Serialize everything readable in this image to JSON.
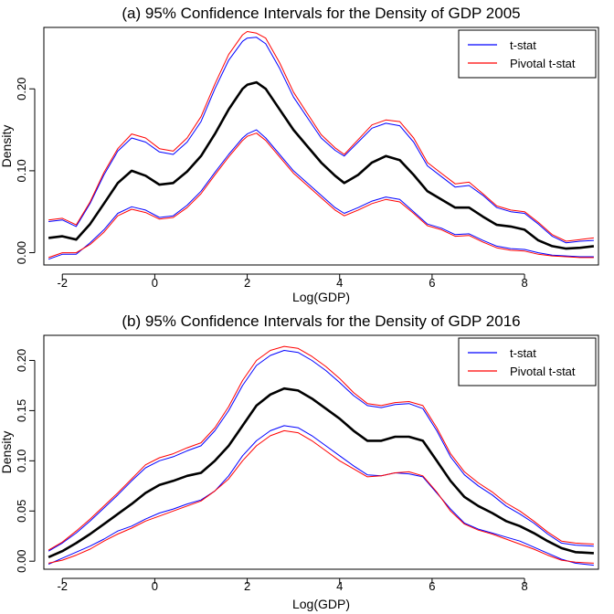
{
  "chart_data": [
    {
      "type": "line",
      "title": "(a) 95% Confidence Intervals for the Density of GDP 2005",
      "xlabel": "Log(GDP)",
      "ylabel": "Density",
      "xlim": [
        -2.4,
        9.6
      ],
      "ylim": [
        -0.015,
        0.275
      ],
      "xticks": [
        -2,
        0,
        2,
        4,
        6,
        8
      ],
      "xtick_labels": [
        "-2",
        "0",
        "2",
        "4",
        "6",
        "8"
      ],
      "yticks": [
        0.0,
        0.1,
        0.2
      ],
      "ytick_labels": [
        "0.00",
        "0.10",
        "0.20"
      ],
      "legend_position": "top-right",
      "legend": [
        {
          "label": "t-stat",
          "color": "#0000ff"
        },
        {
          "label": "Pivotal t-stat",
          "color": "#ff0000"
        }
      ],
      "x": [
        -2.3,
        -2.0,
        -1.7,
        -1.4,
        -1.1,
        -0.8,
        -0.5,
        -0.2,
        0.1,
        0.4,
        0.7,
        1.0,
        1.3,
        1.6,
        1.9,
        2.0,
        2.2,
        2.4,
        2.7,
        3.0,
        3.3,
        3.6,
        3.9,
        4.1,
        4.4,
        4.7,
        5.0,
        5.3,
        5.6,
        5.9,
        6.2,
        6.5,
        6.8,
        7.1,
        7.4,
        7.7,
        8.0,
        8.3,
        8.6,
        8.9,
        9.2,
        9.5
      ],
      "series": [
        {
          "name": "",
          "role": "estimate",
          "color": "#000000",
          "values": [
            0.018,
            0.02,
            0.016,
            0.035,
            0.06,
            0.085,
            0.1,
            0.094,
            0.083,
            0.085,
            0.099,
            0.118,
            0.145,
            0.175,
            0.2,
            0.205,
            0.208,
            0.2,
            0.175,
            0.15,
            0.13,
            0.11,
            0.094,
            0.085,
            0.095,
            0.11,
            0.118,
            0.113,
            0.095,
            0.075,
            0.065,
            0.055,
            0.055,
            0.044,
            0.034,
            0.032,
            0.028,
            0.015,
            0.008,
            0.005,
            0.006,
            0.008
          ]
        },
        {
          "name": "t-stat",
          "role": "upper",
          "color": "#0000ff",
          "values": [
            0.038,
            0.04,
            0.032,
            0.06,
            0.095,
            0.124,
            0.14,
            0.135,
            0.123,
            0.12,
            0.135,
            0.16,
            0.2,
            0.235,
            0.258,
            0.262,
            0.263,
            0.255,
            0.225,
            0.19,
            0.165,
            0.14,
            0.125,
            0.118,
            0.135,
            0.152,
            0.158,
            0.155,
            0.135,
            0.106,
            0.093,
            0.08,
            0.082,
            0.07,
            0.055,
            0.05,
            0.048,
            0.035,
            0.02,
            0.012,
            0.014,
            0.015
          ]
        },
        {
          "name": "Pivotal t-stat",
          "role": "upper",
          "color": "#ff0000",
          "values": [
            0.04,
            0.042,
            0.034,
            0.062,
            0.098,
            0.127,
            0.145,
            0.14,
            0.127,
            0.124,
            0.14,
            0.166,
            0.206,
            0.242,
            0.266,
            0.27,
            0.268,
            0.262,
            0.232,
            0.196,
            0.17,
            0.144,
            0.128,
            0.12,
            0.138,
            0.156,
            0.162,
            0.16,
            0.14,
            0.11,
            0.097,
            0.084,
            0.086,
            0.072,
            0.057,
            0.052,
            0.05,
            0.037,
            0.022,
            0.014,
            0.016,
            0.018
          ]
        },
        {
          "name": "t-stat",
          "role": "lower",
          "color": "#0000ff",
          "values": [
            -0.008,
            -0.002,
            -0.002,
            0.012,
            0.028,
            0.048,
            0.056,
            0.052,
            0.043,
            0.045,
            0.058,
            0.075,
            0.098,
            0.12,
            0.14,
            0.145,
            0.15,
            0.14,
            0.12,
            0.1,
            0.085,
            0.07,
            0.055,
            0.048,
            0.055,
            0.063,
            0.068,
            0.065,
            0.05,
            0.035,
            0.03,
            0.022,
            0.023,
            0.015,
            0.008,
            0.005,
            0.004,
            0.0,
            -0.003,
            -0.004,
            -0.005,
            -0.005
          ]
        },
        {
          "name": "Pivotal t-stat",
          "role": "lower",
          "color": "#ff0000",
          "values": [
            -0.006,
            0.0,
            0.0,
            0.01,
            0.025,
            0.045,
            0.053,
            0.049,
            0.041,
            0.043,
            0.055,
            0.072,
            0.095,
            0.117,
            0.137,
            0.142,
            0.146,
            0.137,
            0.117,
            0.097,
            0.082,
            0.067,
            0.052,
            0.045,
            0.052,
            0.06,
            0.065,
            0.062,
            0.048,
            0.033,
            0.028,
            0.02,
            0.021,
            0.013,
            0.006,
            0.003,
            0.002,
            -0.002,
            -0.004,
            -0.005,
            -0.006,
            -0.006
          ]
        }
      ]
    },
    {
      "type": "line",
      "title": "(b) 95% Confidence Intervals for the Density of GDP 2016",
      "xlabel": "Log(GDP)",
      "ylabel": "Density",
      "xlim": [
        -2.4,
        9.6
      ],
      "ylim": [
        -0.008,
        0.225
      ],
      "xticks": [
        -2,
        0,
        2,
        4,
        6,
        8
      ],
      "xtick_labels": [
        "-2",
        "0",
        "2",
        "4",
        "6",
        "8"
      ],
      "yticks": [
        0.0,
        0.05,
        0.1,
        0.15,
        0.2
      ],
      "ytick_labels": [
        "0.00",
        "0.05",
        "0.10",
        "0.15",
        "0.20"
      ],
      "legend_position": "top-right",
      "legend": [
        {
          "label": "t-stat",
          "color": "#0000ff"
        },
        {
          "label": "Pivotal t-stat",
          "color": "#ff0000"
        }
      ],
      "x": [
        -2.3,
        -2.0,
        -1.7,
        -1.4,
        -1.1,
        -0.8,
        -0.5,
        -0.2,
        0.1,
        0.4,
        0.7,
        1.0,
        1.3,
        1.6,
        1.9,
        2.2,
        2.5,
        2.8,
        3.1,
        3.4,
        3.7,
        4.0,
        4.3,
        4.6,
        4.9,
        5.2,
        5.5,
        5.8,
        6.1,
        6.4,
        6.7,
        7.0,
        7.3,
        7.6,
        7.9,
        8.2,
        8.5,
        8.8,
        9.1,
        9.5
      ],
      "series": [
        {
          "name": "",
          "role": "estimate",
          "color": "#000000",
          "values": [
            0.004,
            0.01,
            0.018,
            0.027,
            0.037,
            0.047,
            0.057,
            0.068,
            0.076,
            0.08,
            0.085,
            0.088,
            0.1,
            0.115,
            0.135,
            0.155,
            0.166,
            0.172,
            0.17,
            0.162,
            0.152,
            0.142,
            0.13,
            0.12,
            0.12,
            0.124,
            0.124,
            0.12,
            0.1,
            0.08,
            0.064,
            0.055,
            0.048,
            0.04,
            0.035,
            0.028,
            0.02,
            0.013,
            0.009,
            0.008
          ]
        },
        {
          "name": "t-stat",
          "role": "upper",
          "color": "#0000ff",
          "values": [
            0.01,
            0.018,
            0.028,
            0.04,
            0.053,
            0.066,
            0.08,
            0.093,
            0.1,
            0.104,
            0.11,
            0.115,
            0.13,
            0.15,
            0.175,
            0.195,
            0.205,
            0.21,
            0.208,
            0.2,
            0.19,
            0.178,
            0.165,
            0.155,
            0.153,
            0.156,
            0.157,
            0.152,
            0.13,
            0.104,
            0.086,
            0.075,
            0.066,
            0.055,
            0.047,
            0.038,
            0.027,
            0.018,
            0.016,
            0.015
          ]
        },
        {
          "name": "Pivotal t-stat",
          "role": "upper",
          "color": "#ff0000",
          "values": [
            0.011,
            0.019,
            0.03,
            0.042,
            0.055,
            0.068,
            0.082,
            0.096,
            0.103,
            0.107,
            0.113,
            0.118,
            0.133,
            0.154,
            0.18,
            0.2,
            0.21,
            0.214,
            0.212,
            0.204,
            0.194,
            0.182,
            0.168,
            0.157,
            0.155,
            0.158,
            0.159,
            0.155,
            0.133,
            0.107,
            0.089,
            0.078,
            0.069,
            0.058,
            0.05,
            0.04,
            0.029,
            0.02,
            0.018,
            0.017
          ]
        },
        {
          "name": "t-stat",
          "role": "lower",
          "color": "#0000ff",
          "values": [
            -0.003,
            0.003,
            0.009,
            0.015,
            0.022,
            0.03,
            0.035,
            0.042,
            0.048,
            0.052,
            0.057,
            0.061,
            0.07,
            0.085,
            0.105,
            0.12,
            0.13,
            0.135,
            0.133,
            0.125,
            0.115,
            0.105,
            0.095,
            0.086,
            0.085,
            0.088,
            0.087,
            0.084,
            0.068,
            0.052,
            0.038,
            0.032,
            0.028,
            0.024,
            0.02,
            0.014,
            0.008,
            0.002,
            -0.002,
            -0.004
          ]
        },
        {
          "name": "Pivotal t-stat",
          "role": "lower",
          "color": "#ff0000",
          "values": [
            -0.002,
            0.001,
            0.006,
            0.012,
            0.02,
            0.027,
            0.033,
            0.04,
            0.045,
            0.05,
            0.055,
            0.06,
            0.07,
            0.082,
            0.1,
            0.115,
            0.125,
            0.13,
            0.128,
            0.12,
            0.11,
            0.1,
            0.092,
            0.084,
            0.085,
            0.088,
            0.089,
            0.085,
            0.069,
            0.05,
            0.037,
            0.031,
            0.027,
            0.022,
            0.017,
            0.012,
            0.006,
            0.001,
            -0.001,
            -0.002
          ]
        }
      ]
    }
  ]
}
